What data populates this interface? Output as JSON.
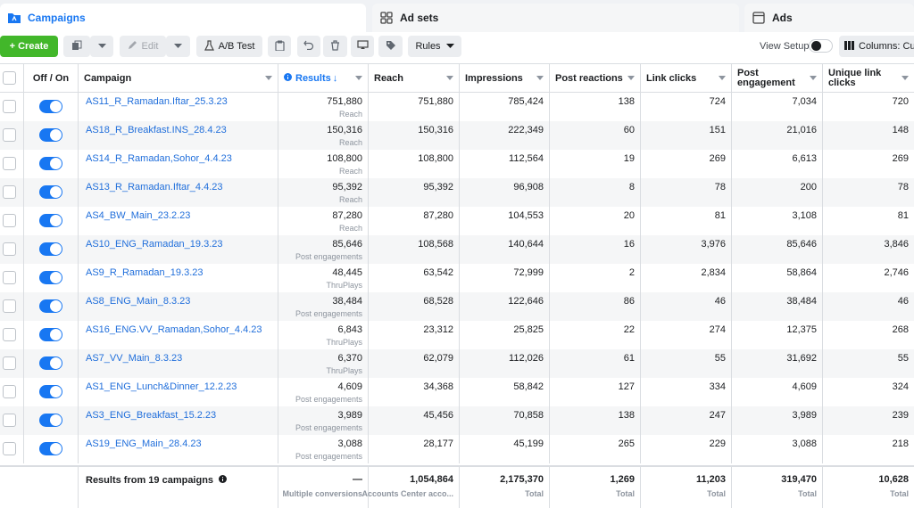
{
  "tabs": [
    {
      "label": "Campaigns",
      "icon": "folder-icon",
      "active": true
    },
    {
      "label": "Ad sets",
      "icon": "grid-icon",
      "active": false
    },
    {
      "label": "Ads",
      "icon": "window-icon",
      "active": false
    }
  ],
  "toolbar": {
    "create_label": "+ Create",
    "edit_label": "Edit",
    "ab_test_label": "A/B Test",
    "rules_label": "Rules",
    "view_setup_label": "View Setup",
    "columns_label": "Columns: Cus"
  },
  "columns": {
    "off_on": "Off / On",
    "campaign": "Campaign",
    "results": "Results",
    "reach": "Reach",
    "impressions": "Impressions",
    "post_reactions": "Post reactions",
    "link_clicks": "Link clicks",
    "post_engagement": "Post engagement",
    "unique_link_clicks": "Unique link clicks"
  },
  "rows": [
    {
      "name": "AS11_R_Ramadan.Iftar_25.3.23",
      "results": "751,880",
      "result_type": "Reach",
      "reach": "751,880",
      "impressions": "785,424",
      "post_reactions": "138",
      "link_clicks": "724",
      "post_engagement": "7,034",
      "unique_link_clicks": "720"
    },
    {
      "name": "AS18_R_Breakfast.INS_28.4.23",
      "results": "150,316",
      "result_type": "Reach",
      "reach": "150,316",
      "impressions": "222,349",
      "post_reactions": "60",
      "link_clicks": "151",
      "post_engagement": "21,016",
      "unique_link_clicks": "148"
    },
    {
      "name": "AS14_R_Ramadan,Sohor_4.4.23",
      "results": "108,800",
      "result_type": "Reach",
      "reach": "108,800",
      "impressions": "112,564",
      "post_reactions": "19",
      "link_clicks": "269",
      "post_engagement": "6,613",
      "unique_link_clicks": "269"
    },
    {
      "name": "AS13_R_Ramadan.Iftar_4.4.23",
      "results": "95,392",
      "result_type": "Reach",
      "reach": "95,392",
      "impressions": "96,908",
      "post_reactions": "8",
      "link_clicks": "78",
      "post_engagement": "200",
      "unique_link_clicks": "78"
    },
    {
      "name": "AS4_BW_Main_23.2.23",
      "results": "87,280",
      "result_type": "Reach",
      "reach": "87,280",
      "impressions": "104,553",
      "post_reactions": "20",
      "link_clicks": "81",
      "post_engagement": "3,108",
      "unique_link_clicks": "81"
    },
    {
      "name": "AS10_ENG_Ramadan_19.3.23",
      "results": "85,646",
      "result_type": "Post engagements",
      "reach": "108,568",
      "impressions": "140,644",
      "post_reactions": "16",
      "link_clicks": "3,976",
      "post_engagement": "85,646",
      "unique_link_clicks": "3,846"
    },
    {
      "name": "AS9_R_Ramadan_19.3.23",
      "results": "48,445",
      "result_type": "ThruPlays",
      "reach": "63,542",
      "impressions": "72,999",
      "post_reactions": "2",
      "link_clicks": "2,834",
      "post_engagement": "58,864",
      "unique_link_clicks": "2,746"
    },
    {
      "name": "AS8_ENG_Main_8.3.23",
      "results": "38,484",
      "result_type": "Post engagements",
      "reach": "68,528",
      "impressions": "122,646",
      "post_reactions": "86",
      "link_clicks": "46",
      "post_engagement": "38,484",
      "unique_link_clicks": "46"
    },
    {
      "name": "AS16_ENG.VV_Ramadan,Sohor_4.4.23",
      "results": "6,843",
      "result_type": "ThruPlays",
      "reach": "23,312",
      "impressions": "25,825",
      "post_reactions": "22",
      "link_clicks": "274",
      "post_engagement": "12,375",
      "unique_link_clicks": "268"
    },
    {
      "name": "AS7_VV_Main_8.3.23",
      "results": "6,370",
      "result_type": "ThruPlays",
      "reach": "62,079",
      "impressions": "112,026",
      "post_reactions": "61",
      "link_clicks": "55",
      "post_engagement": "31,692",
      "unique_link_clicks": "55"
    },
    {
      "name": "AS1_ENG_Lunch&Dinner_12.2.23",
      "results": "4,609",
      "result_type": "Post engagements",
      "reach": "34,368",
      "impressions": "58,842",
      "post_reactions": "127",
      "link_clicks": "334",
      "post_engagement": "4,609",
      "unique_link_clicks": "324"
    },
    {
      "name": "AS3_ENG_Breakfast_15.2.23",
      "results": "3,989",
      "result_type": "Post engagements",
      "reach": "45,456",
      "impressions": "70,858",
      "post_reactions": "138",
      "link_clicks": "247",
      "post_engagement": "3,989",
      "unique_link_clicks": "239"
    },
    {
      "name": "AS19_ENG_Main_28.4.23",
      "results": "3,088",
      "result_type": "Post engagements",
      "reach": "28,177",
      "impressions": "45,199",
      "post_reactions": "265",
      "link_clicks": "229",
      "post_engagement": "3,088",
      "unique_link_clicks": "218"
    }
  ],
  "footer": {
    "label": "Results from 19 campaigns",
    "results": "—",
    "results_sub": "Multiple conversions",
    "reach": "1,054,864",
    "reach_sub": "Accounts Center acco...",
    "impressions": "2,175,370",
    "impressions_sub": "Total",
    "post_reactions": "1,269",
    "post_reactions_sub": "Total",
    "link_clicks": "11,203",
    "link_clicks_sub": "Total",
    "post_engagement": "319,470",
    "post_engagement_sub": "Total",
    "unique_link_clicks": "10,628",
    "unique_link_clicks_sub": "Total"
  },
  "colors": {
    "accent": "#1877f2",
    "create": "#42b72a",
    "link": "#216fdb"
  }
}
